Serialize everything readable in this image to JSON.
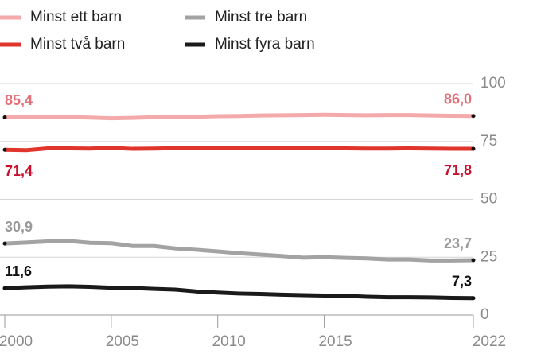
{
  "chart_data": {
    "type": "line",
    "x": [
      2000,
      2001,
      2002,
      2003,
      2004,
      2005,
      2006,
      2007,
      2008,
      2009,
      2010,
      2011,
      2012,
      2013,
      2014,
      2015,
      2016,
      2017,
      2018,
      2019,
      2020,
      2021,
      2022
    ],
    "series": [
      {
        "name": "Minst ett barn",
        "color": "#f4a9ab",
        "values": [
          85.4,
          85.5,
          85.6,
          85.5,
          85.3,
          85.0,
          85.2,
          85.5,
          85.6,
          85.7,
          85.9,
          86.0,
          86.2,
          86.3,
          86.4,
          86.5,
          86.4,
          86.3,
          86.4,
          86.4,
          86.2,
          86.1,
          86.0
        ],
        "value_labels": [
          "85,4",
          "86,0"
        ]
      },
      {
        "name": "Minst två barn",
        "color": "#e0352b",
        "values": [
          71.4,
          71.2,
          72.0,
          72.0,
          71.9,
          72.2,
          71.8,
          71.9,
          72.1,
          72.0,
          72.1,
          72.3,
          72.2,
          72.1,
          72.0,
          72.2,
          72.0,
          71.9,
          71.9,
          72.0,
          71.9,
          71.8,
          71.8
        ],
        "value_labels": [
          "71,4",
          "71,8"
        ]
      },
      {
        "name": "Minst tre barn",
        "color": "#a3a3a3",
        "values": [
          30.9,
          31.3,
          31.8,
          32.0,
          31.2,
          31.0,
          29.8,
          29.8,
          28.8,
          28.2,
          27.5,
          26.7,
          26.1,
          25.5,
          24.8,
          25.0,
          24.7,
          24.5,
          24.0,
          24.0,
          23.6,
          23.6,
          23.7
        ],
        "value_labels": [
          "30,9",
          "23,7"
        ]
      },
      {
        "name": "Minst fyra barn",
        "color": "#1a1a1a",
        "values": [
          11.6,
          12.0,
          12.3,
          12.4,
          12.2,
          11.8,
          11.7,
          11.3,
          11.0,
          10.2,
          9.7,
          9.3,
          9.1,
          8.8,
          8.6,
          8.4,
          8.3,
          7.9,
          7.7,
          7.7,
          7.6,
          7.4,
          7.3
        ],
        "value_labels": [
          "11,6",
          "7,3"
        ]
      }
    ],
    "label_colors": [
      "#e36f78",
      "#c8102e",
      "#9a9a9a",
      "#111111"
    ],
    "xlim": [
      2000,
      2022
    ],
    "xticks": [
      2000,
      2005,
      2010,
      2015,
      2022
    ],
    "ylim": [
      0,
      100
    ],
    "yticks": [
      0,
      25,
      50,
      75,
      100
    ],
    "grid": true
  }
}
